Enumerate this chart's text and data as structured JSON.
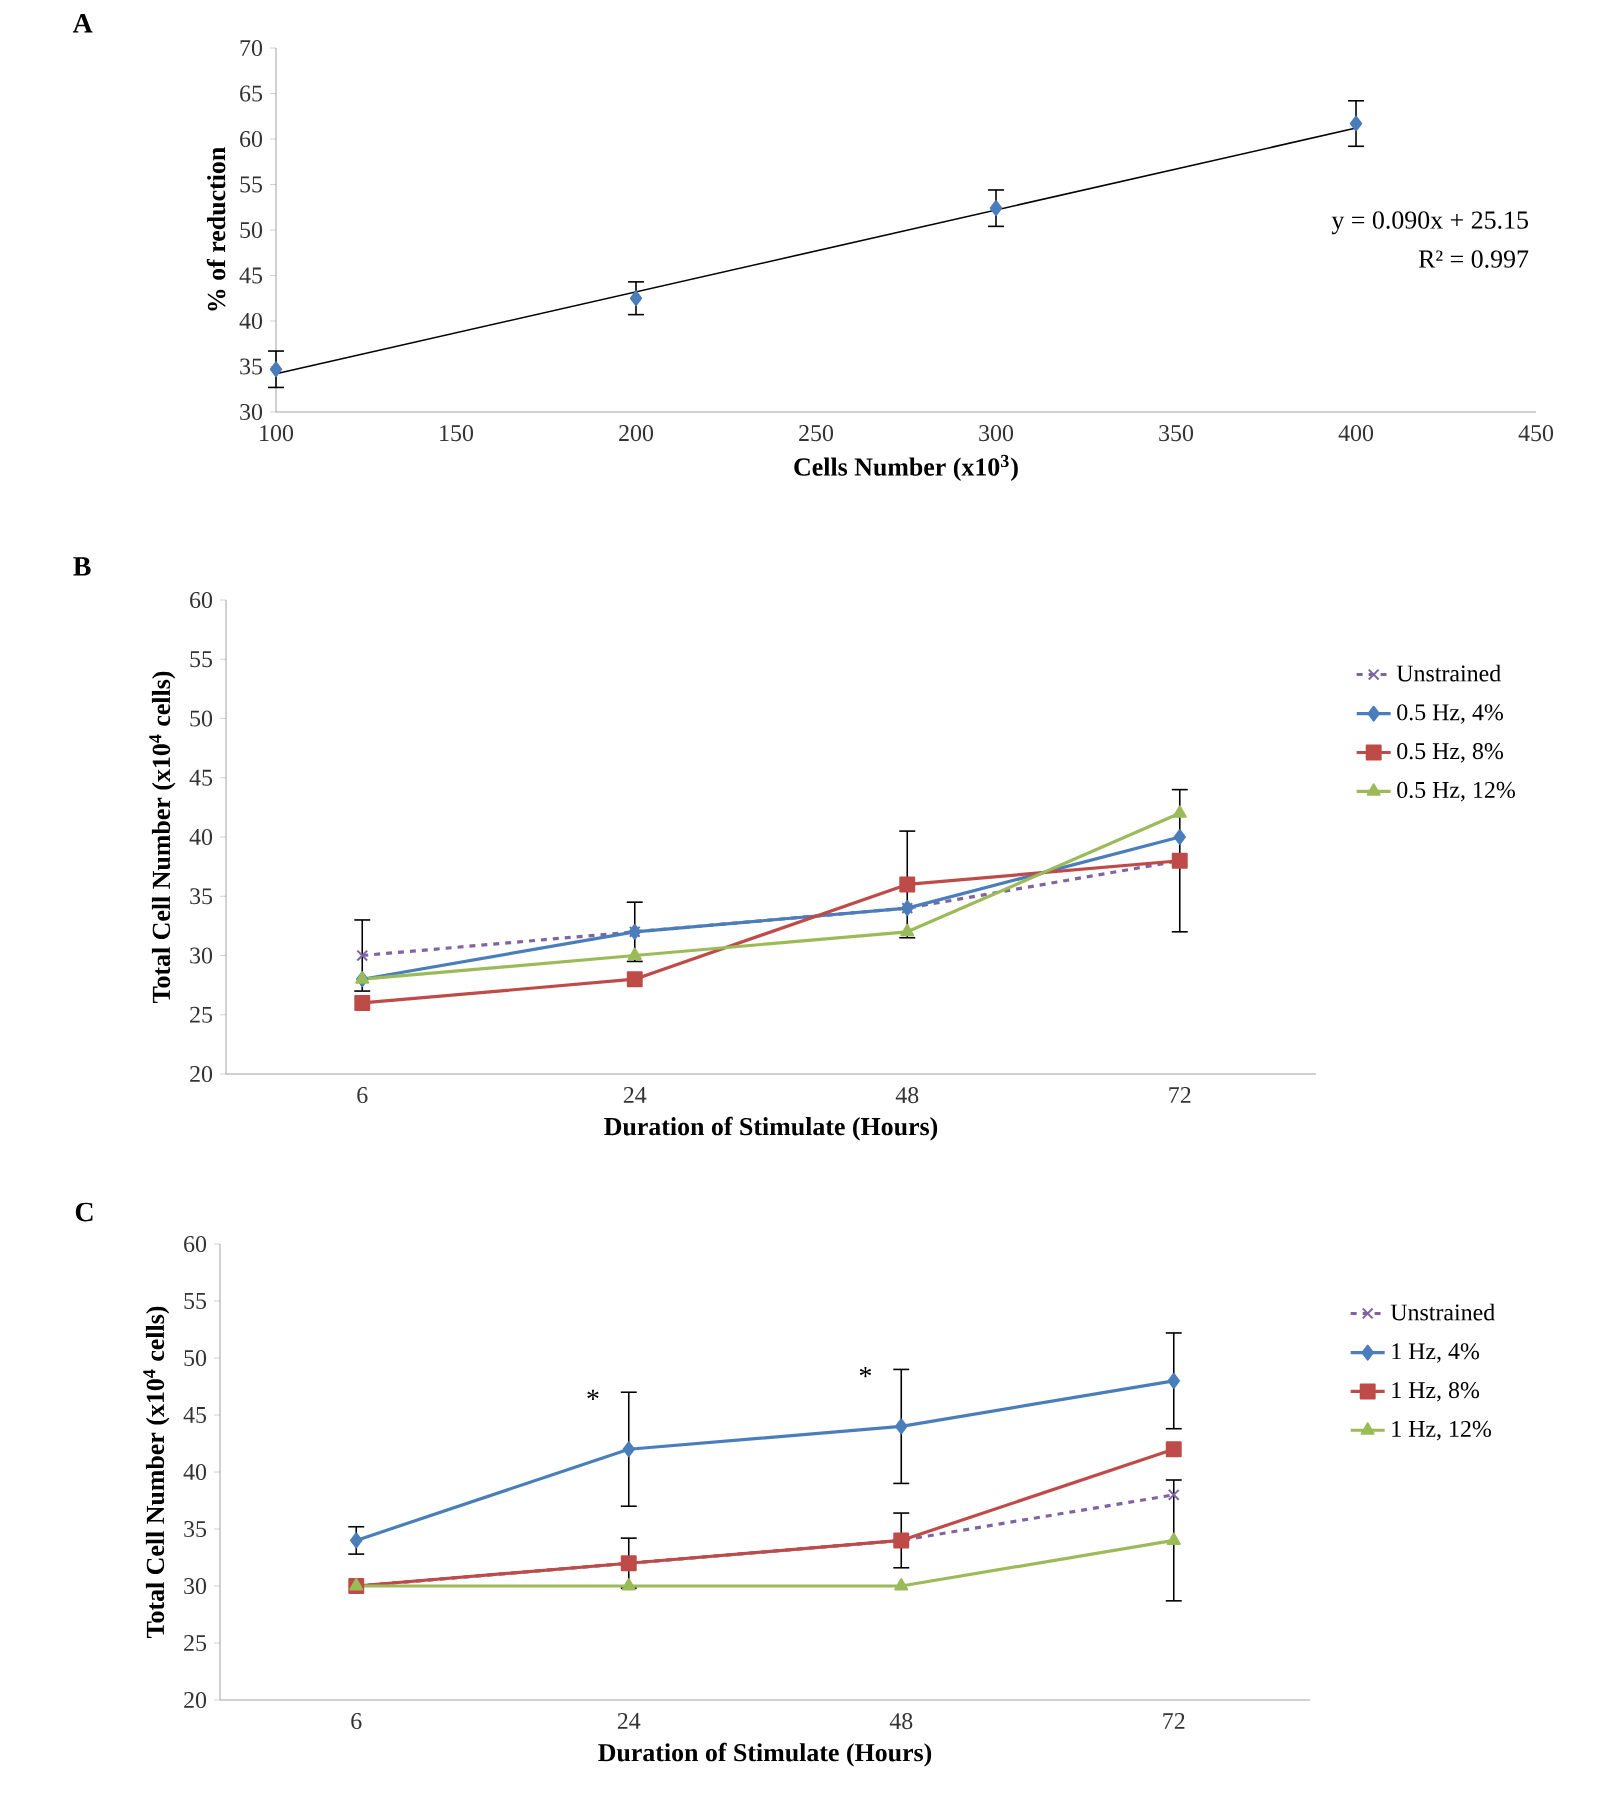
{
  "chart_data": [
    {
      "type": "scatter",
      "title": "A",
      "xlabel": "Cells Number  (x10$^{3}$)",
      "ylabel": "% of reduction",
      "x": [
        100,
        200,
        300,
        400
      ],
      "xlim": [
        100,
        450
      ],
      "xticks": [
        100,
        150,
        200,
        250,
        300,
        350,
        400,
        450
      ],
      "ylim": [
        30,
        70
      ],
      "yticks": [
        30,
        35,
        40,
        45,
        50,
        55,
        60,
        65,
        70
      ],
      "annotations": [
        "y = 0.090x  + 25.15",
        "R² = 0.997"
      ],
      "series": [
        {
          "type": "scatter",
          "color": "#4a7ebb",
          "marker": "diamond",
          "values": [
            34.7,
            42.5,
            52.4,
            61.7
          ],
          "errors": [
            2,
            1.8,
            2,
            2.5
          ]
        },
        {
          "type": "line",
          "color": "#000000",
          "marker": "none",
          "x": [
            100,
            400
          ],
          "values": [
            34.2,
            61.2
          ]
        }
      ]
    },
    {
      "type": "line",
      "title": "B",
      "xlabel": "Duration of Stimulate (Hours)",
      "ylabel": "Total Cell Number (x10$^{4}$ cells)",
      "categories": [
        "6",
        "24",
        "48",
        "72"
      ],
      "ylim": [
        20,
        60
      ],
      "yticks": [
        20,
        25,
        30,
        35,
        40,
        45,
        50,
        55,
        60
      ],
      "legend": "right",
      "series": [
        {
          "name": "Unstrained",
          "color": "#8064a2",
          "marker": "cross",
          "line_style": "dashed",
          "values": [
            30,
            32,
            34,
            38
          ],
          "errors": [
            3,
            2.5,
            null,
            6
          ]
        },
        {
          "name": "0.5 Hz, 4%",
          "color": "#4a7ebb",
          "marker": "diamond",
          "values": [
            28,
            32,
            34,
            40
          ]
        },
        {
          "name": "0.5 Hz, 8%",
          "color": "#be4b48",
          "marker": "square",
          "values": [
            26,
            28,
            36,
            38
          ],
          "errors": [
            null,
            null,
            4.5,
            null
          ]
        },
        {
          "name": "0.5 Hz, 12%",
          "color": "#9bbb59",
          "marker": "triangle",
          "values": [
            28,
            30,
            32,
            42
          ]
        }
      ]
    },
    {
      "type": "line",
      "title": "C",
      "xlabel": "Duration of Stimulate (Hours)",
      "ylabel": "Total Cell Number (x10$^{4}$ cells)",
      "categories": [
        "6",
        "24",
        "48",
        "72"
      ],
      "ylim": [
        20,
        60
      ],
      "yticks": [
        20,
        25,
        30,
        35,
        40,
        45,
        50,
        55,
        60
      ],
      "legend": "right",
      "annotations": [
        {
          "text": "*",
          "x": "24",
          "y": 45
        },
        {
          "text": "*",
          "x": "48",
          "y": 47
        }
      ],
      "series": [
        {
          "name": "Unstrained",
          "color": "#8064a2",
          "marker": "cross",
          "line_style": "dashed",
          "values": [
            30,
            32,
            34,
            38
          ]
        },
        {
          "name": "1 Hz, 4%",
          "color": "#4a7ebb",
          "marker": "diamond",
          "values": [
            34,
            42,
            44,
            48
          ],
          "errors": [
            1.2,
            5,
            5,
            4.2
          ]
        },
        {
          "name": "1 Hz, 8%",
          "color": "#be4b48",
          "marker": "square",
          "values": [
            30,
            32,
            34,
            42
          ],
          "errors": [
            null,
            2.2,
            2.4,
            null
          ]
        },
        {
          "name": "1 Hz, 12%",
          "color": "#9bbb59",
          "marker": "triangle",
          "values": [
            30,
            30,
            30,
            34
          ],
          "errors": [
            null,
            null,
            null,
            5.3
          ]
        }
      ]
    }
  ]
}
